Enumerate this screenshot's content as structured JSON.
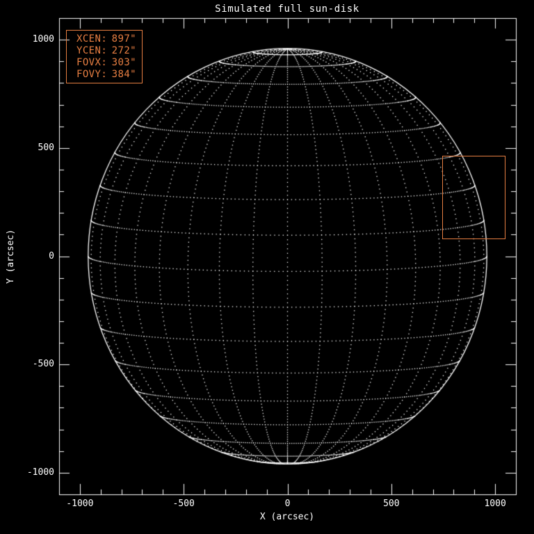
{
  "window": {
    "background_color": "#000000"
  },
  "chart_data": {
    "type": "scatter",
    "subtype": "heliographic-wireframe-sun-disk",
    "title": "Simulated full sun-disk",
    "xlabel": "X (arcsec)",
    "ylabel": "Y (arcsec)",
    "xlim": [
      -1100,
      1100
    ],
    "ylim": [
      -1100,
      1100
    ],
    "x_major_ticks": [
      -1000,
      -500,
      0,
      500,
      1000
    ],
    "y_major_ticks": [
      -1000,
      -500,
      0,
      500,
      1000
    ],
    "minor_tick_step": 100,
    "grid_style": "dotted",
    "legend": "none",
    "sun_radius_arcsec": 960,
    "grid_spacing_deg": 10,
    "b0_tilt_deg": 4.2,
    "dot_step_deg": 1.25,
    "colors": {
      "background": "#000000",
      "axes": "#ffffff",
      "grid_dots": "#ffffff",
      "limb": "#ffffff",
      "annotation": "#e87f42"
    },
    "fov": {
      "xcen": 897,
      "ycen": 272,
      "fovx": 303,
      "fovy": 384
    },
    "annotation_lines": [
      {
        "label": "XCEN:",
        "value": "897\""
      },
      {
        "label": "YCEN:",
        "value": "272\""
      },
      {
        "label": "FOVX:",
        "value": "303\""
      },
      {
        "label": "FOVY:",
        "value": "384\""
      }
    ]
  }
}
